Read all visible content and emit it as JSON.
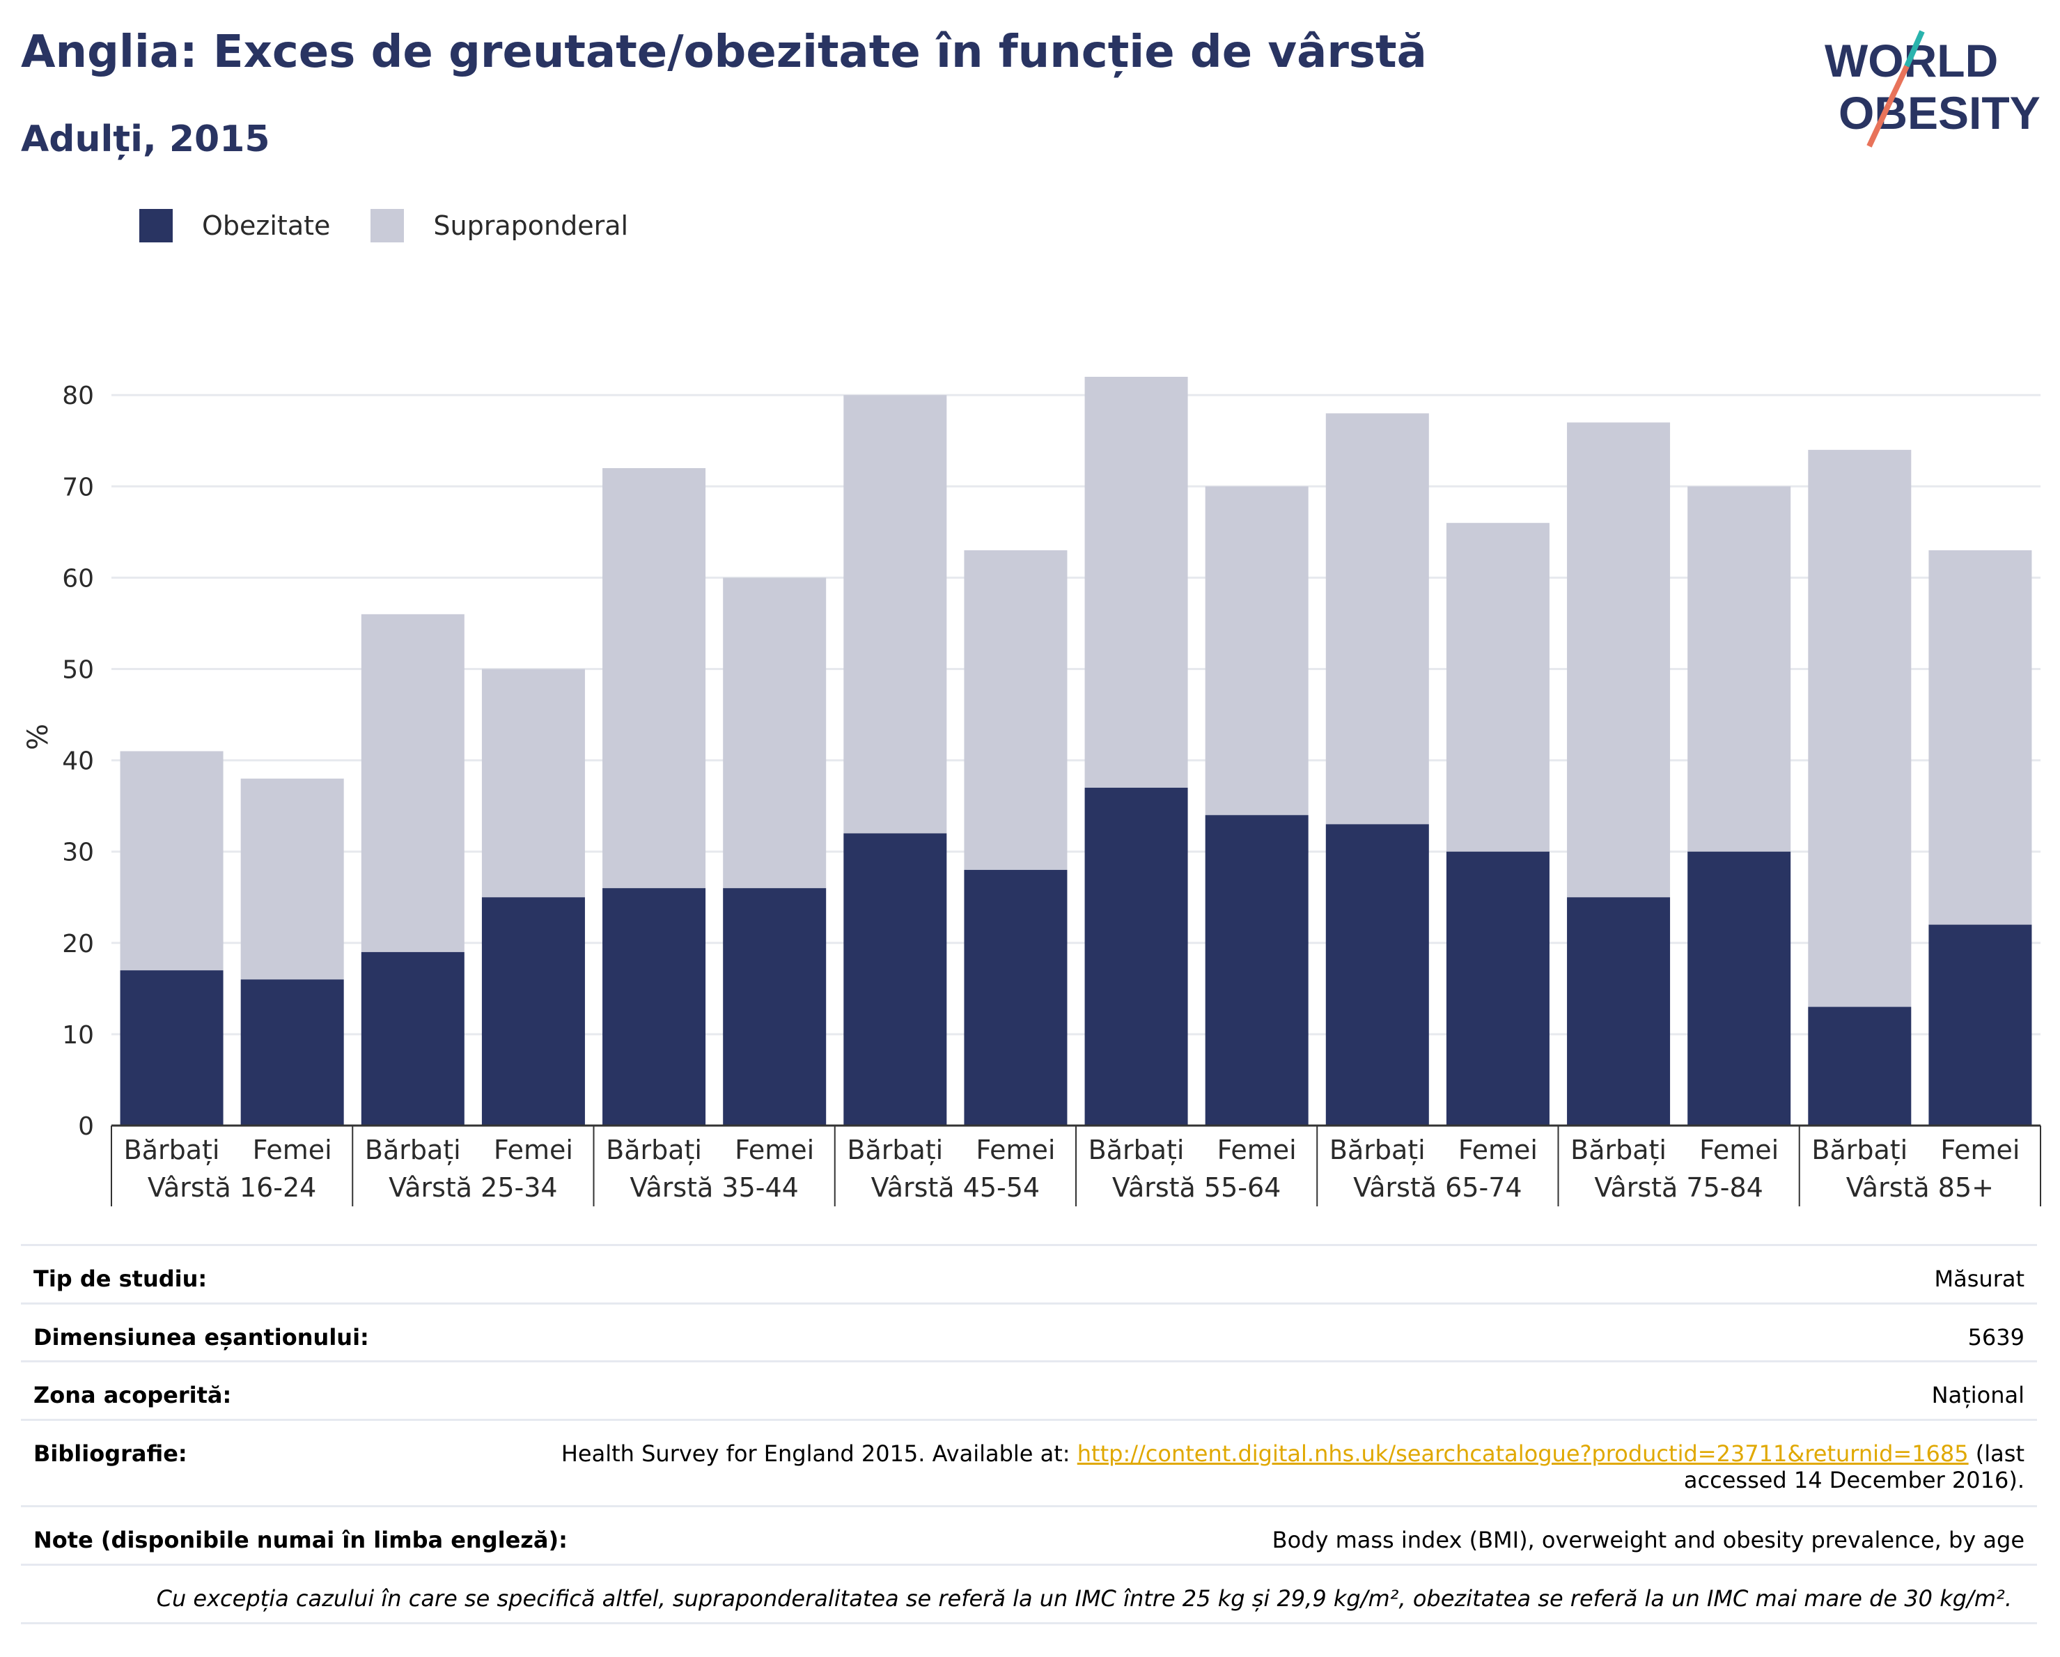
{
  "header": {
    "title": "Anglia: Exces de greutate/obezitate în funcție de vârstă",
    "subtitle": "Adulți, 2015"
  },
  "logo": {
    "line1": "WORLD",
    "line2": "OBESITY"
  },
  "colors": {
    "obesity": "#293462",
    "overweight": "#c9cbd8",
    "text": "#293462",
    "link": "#e0a800"
  },
  "chart_data": {
    "type": "bar",
    "stacked": true,
    "ylabel": "%",
    "ylim": [
      0,
      80
    ],
    "yticks": [
      0,
      10,
      20,
      30,
      40,
      50,
      60,
      70,
      80
    ],
    "grid": true,
    "legend_position": "top-left",
    "groups": [
      "Vârstă 16-24",
      "Vârstă 25-34",
      "Vârstă 35-44",
      "Vârstă 45-54",
      "Vârstă 55-64",
      "Vârstă 65-74",
      "Vârstă 75-84",
      "Vârstă 85+"
    ],
    "subcategories": [
      "Bărbați",
      "Femei"
    ],
    "series": [
      {
        "name": "Obezitate",
        "values": [
          17,
          16,
          19,
          25,
          26,
          26,
          32,
          28,
          37,
          34,
          33,
          30,
          25,
          30,
          13,
          22
        ]
      },
      {
        "name": "Supraponderal",
        "values": [
          24,
          22,
          37,
          25,
          46,
          34,
          48,
          35,
          45,
          36,
          45,
          36,
          52,
          40,
          61,
          41
        ]
      }
    ]
  },
  "metadata": {
    "study_type": {
      "label": "Tip de studiu:",
      "value": "Măsurat"
    },
    "sample_size": {
      "label": "Dimensiunea eșantionului:",
      "value": "5639"
    },
    "area": {
      "label": "Zona acoperită:",
      "value": "Național"
    },
    "bibliography": {
      "label": "Bibliografie:",
      "prefix": "Health Survey for England 2015. Available at: ",
      "link": "http://content.digital.nhs.uk/searchcatalogue?productid=23711&returnid=1685",
      "suffix_line1": " (last",
      "suffix_line2": "accessed 14 December 2016)."
    },
    "notes": {
      "label": "Note (disponibile numai în limba engleză):",
      "value": "Body mass index (BMI), overweight and obesity prevalence, by age"
    },
    "footnote": "Cu excepția cazului în care se specifică altfel, supraponderalitatea se referă la un IMC între 25 kg și 29,9 kg/m², obezitatea se referă la un IMC mai mare de 30 kg/m²."
  }
}
